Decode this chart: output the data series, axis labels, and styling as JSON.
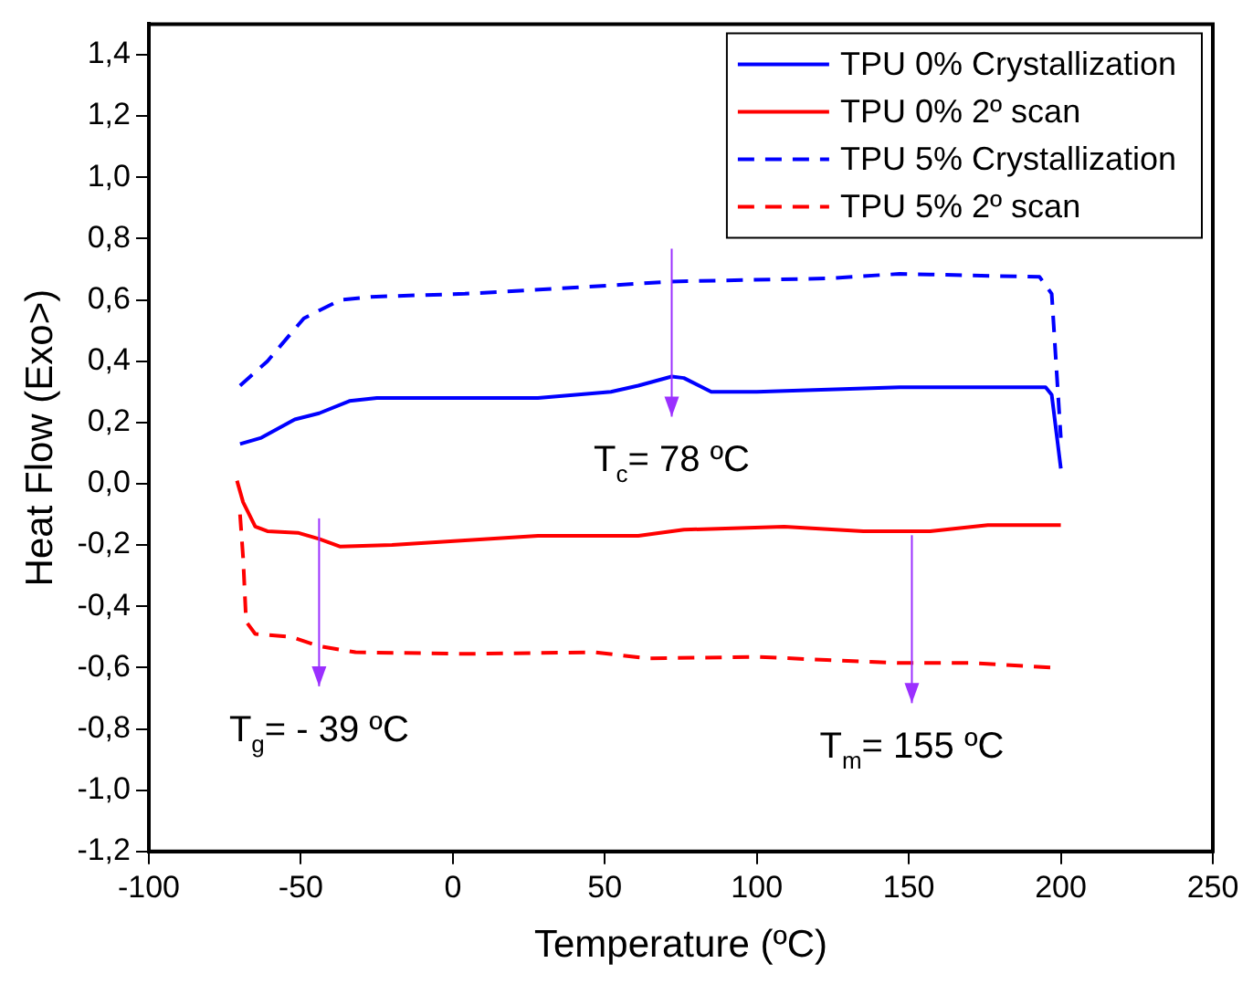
{
  "chart_data": {
    "type": "line",
    "xlabel": "Temperature (ºC)",
    "ylabel": "Heat Flow (Exo>)",
    "xlim": [
      -100,
      250
    ],
    "xticks": [
      -100,
      -50,
      0,
      50,
      100,
      150,
      200,
      250
    ],
    "ylim": [
      -1.2,
      1.5
    ],
    "yticks": [
      {
        "value": -1.2,
        "label": "-1,2"
      },
      {
        "value": -1.0,
        "label": "-1,0"
      },
      {
        "value": -0.8,
        "label": "-0,8"
      },
      {
        "value": -0.6,
        "label": "-0,6"
      },
      {
        "value": -0.4,
        "label": "-0,4"
      },
      {
        "value": -0.2,
        "label": "-0,2"
      },
      {
        "value": 0,
        "label": "0,0"
      },
      {
        "value": 0.2,
        "label": "0,2"
      },
      {
        "value": 0.4,
        "label": "0,4"
      },
      {
        "value": 0.6,
        "label": "0,6"
      },
      {
        "value": 0.8,
        "label": "0,8"
      },
      {
        "value": 1.0,
        "label": "1,0"
      },
      {
        "value": 1.2,
        "label": "1,2"
      },
      {
        "value": 1.4,
        "label": "1,4"
      }
    ],
    "grid": false,
    "legend": "top right",
    "marker": "none",
    "series": [
      {
        "name": "TPU 0% Crystallization",
        "color": "#0000ff",
        "line_style": "solid",
        "x": [
          -70,
          -63,
          -52,
          -44,
          -34,
          -25,
          4,
          28,
          52,
          61,
          72,
          76,
          85,
          100,
          147,
          195,
          197,
          200
        ],
        "values": [
          0.13,
          0.15,
          0.21,
          0.23,
          0.27,
          0.28,
          0.28,
          0.28,
          0.3,
          0.32,
          0.35,
          0.345,
          0.3,
          0.3,
          0.315,
          0.315,
          0.29,
          0.05
        ]
      },
      {
        "name": "TPU 0% 2º scan",
        "color": "#ff0000",
        "line_style": "solid",
        "x": [
          -71,
          -69,
          -65,
          -61,
          -51,
          -44,
          -37,
          -20,
          4,
          28,
          61,
          76,
          109,
          135,
          157,
          176,
          200
        ],
        "values": [
          0.01,
          -0.06,
          -0.14,
          -0.155,
          -0.16,
          -0.18,
          -0.205,
          -0.2,
          -0.185,
          -0.17,
          -0.17,
          -0.15,
          -0.14,
          -0.155,
          -0.155,
          -0.135,
          -0.135
        ]
      },
      {
        "name": "TPU 5% Crystallization",
        "color": "#0000ff",
        "line_style": "dashed",
        "x": [
          -70,
          -61,
          -49,
          -37,
          -27,
          4,
          40,
          72,
          123,
          147,
          193,
          197,
          200
        ],
        "values": [
          0.32,
          0.4,
          0.54,
          0.6,
          0.61,
          0.62,
          0.64,
          0.66,
          0.67,
          0.685,
          0.675,
          0.62,
          0.15
        ]
      },
      {
        "name": "TPU 5% 2º scan",
        "color": "#ff0000",
        "line_style": "dashed",
        "x": [
          -70,
          -69,
          -68,
          -65,
          -53,
          -44,
          -32,
          4,
          47,
          64,
          100,
          123,
          147,
          171,
          197
        ],
        "values": [
          -0.1,
          -0.24,
          -0.45,
          -0.49,
          -0.5,
          -0.53,
          -0.55,
          -0.555,
          -0.55,
          -0.57,
          -0.565,
          -0.575,
          -0.585,
          -0.585,
          -0.6
        ]
      }
    ],
    "annotations": [
      {
        "text": "T$_{c}$= 78 ºC",
        "x": 72,
        "y": 0.35
      },
      {
        "text": "T$_{g}$= - 39 ºC",
        "x": -44,
        "y": -0.53
      },
      {
        "text": "T$_{m}$= 155 ºC",
        "x": 151,
        "y": -0.585
      }
    ]
  }
}
